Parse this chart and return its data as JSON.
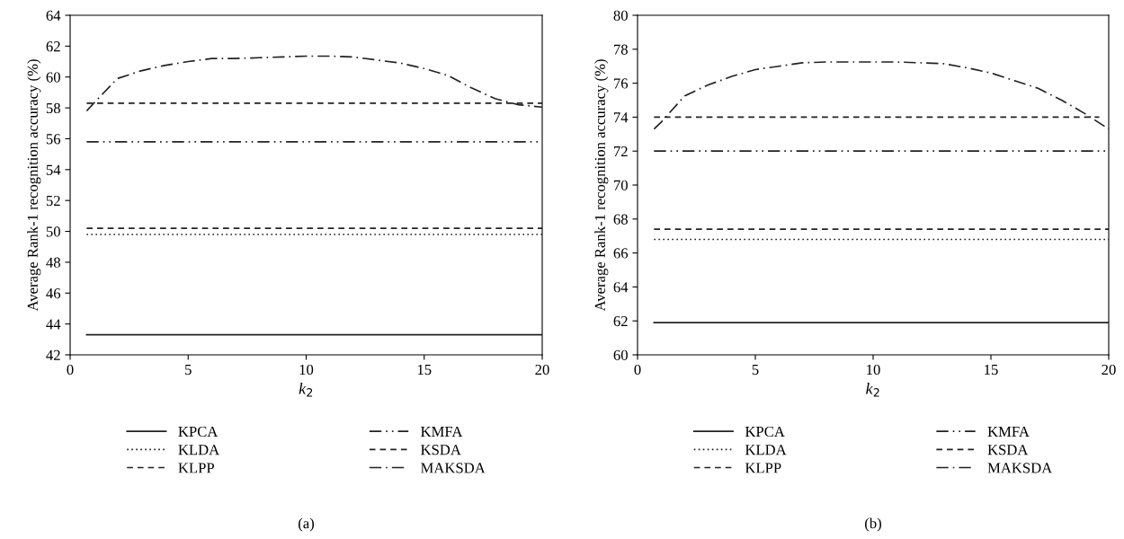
{
  "chart_data": [
    {
      "type": "line",
      "xlabel": "k$_{2}$",
      "ylabel": "Average Rank-1 recognition accuracy (%)",
      "annotations": [
        "(a)"
      ],
      "xlim": [
        0,
        20
      ],
      "xticks": [
        0,
        5,
        10,
        15,
        20
      ],
      "ylim": [
        42,
        64
      ],
      "yticks": [
        42,
        44,
        46,
        48,
        50,
        52,
        54,
        56,
        58,
        60,
        62,
        64
      ],
      "grid": false,
      "legend": "bottom",
      "series": [
        {
          "name": "KPCA",
          "color": "#222222",
          "line_style": "solid",
          "x": [
            0.7,
            20
          ],
          "values": [
            43.3,
            43.3
          ]
        },
        {
          "name": "KLDA",
          "color": "#222222",
          "line_style": "dotted",
          "x": [
            0.7,
            20
          ],
          "values": [
            49.8,
            49.8
          ]
        },
        {
          "name": "KLPP",
          "color": "#222222",
          "line_style": "dashed",
          "x": [
            0.7,
            20
          ],
          "values": [
            50.2,
            50.2
          ]
        },
        {
          "name": "KMFA",
          "color": "#222222",
          "line_style": "dashdotdot",
          "x": [
            0.7,
            20
          ],
          "values": [
            55.8,
            55.8
          ]
        },
        {
          "name": "KSDA",
          "color": "#222222",
          "line_style": "dashed",
          "x": [
            0.7,
            20
          ],
          "values": [
            58.3,
            58.3
          ]
        },
        {
          "name": "MAKSDA",
          "color": "#222222",
          "line_style": "dashdot",
          "x": [
            0.7,
            1,
            2,
            3,
            4,
            5,
            6,
            7,
            8,
            9,
            10,
            11,
            12,
            13,
            14,
            15,
            16,
            17,
            18,
            19,
            20
          ],
          "values": [
            57.8,
            58.3,
            59.9,
            60.4,
            60.75,
            61.0,
            61.2,
            61.2,
            61.25,
            61.3,
            61.35,
            61.35,
            61.3,
            61.1,
            60.9,
            60.55,
            60.1,
            59.3,
            58.6,
            58.2,
            58.05
          ]
        }
      ]
    },
    {
      "type": "line",
      "xlabel": "k$_{2}$",
      "ylabel": "Average Rank-1 recognition accuracy (%)",
      "annotations": [
        "(b)"
      ],
      "xlim": [
        0,
        20
      ],
      "xticks": [
        0,
        5,
        10,
        15,
        20
      ],
      "ylim": [
        60,
        80
      ],
      "yticks": [
        60,
        62,
        64,
        66,
        68,
        70,
        72,
        74,
        76,
        78,
        80
      ],
      "grid": false,
      "legend": "bottom",
      "series": [
        {
          "name": "KPCA",
          "color": "#222222",
          "line_style": "solid",
          "x": [
            0.7,
            20
          ],
          "values": [
            61.9,
            61.9
          ]
        },
        {
          "name": "KLDA",
          "color": "#222222",
          "line_style": "dotted",
          "x": [
            0.7,
            20
          ],
          "values": [
            66.8,
            66.8
          ]
        },
        {
          "name": "KLPP",
          "color": "#222222",
          "line_style": "dashed",
          "x": [
            0.7,
            20
          ],
          "values": [
            67.4,
            67.4
          ]
        },
        {
          "name": "KMFA",
          "color": "#222222",
          "line_style": "dashdotdot",
          "x": [
            0.7,
            20
          ],
          "values": [
            72.0,
            72.0
          ]
        },
        {
          "name": "KSDA",
          "color": "#222222",
          "line_style": "dashed",
          "x": [
            0.7,
            19.6
          ],
          "values": [
            74.0,
            74.0
          ]
        },
        {
          "name": "MAKSDA",
          "color": "#222222",
          "line_style": "dashdot",
          "x": [
            0.7,
            1,
            2,
            3,
            4,
            5,
            6,
            7,
            8,
            9,
            10,
            11,
            12,
            13,
            14,
            15,
            16,
            17,
            18,
            19,
            20
          ],
          "values": [
            73.3,
            73.7,
            75.25,
            75.9,
            76.4,
            76.8,
            77.0,
            77.2,
            77.25,
            77.25,
            77.25,
            77.25,
            77.2,
            77.15,
            76.9,
            76.6,
            76.15,
            75.7,
            75.0,
            74.2,
            73.3
          ]
        }
      ]
    }
  ]
}
